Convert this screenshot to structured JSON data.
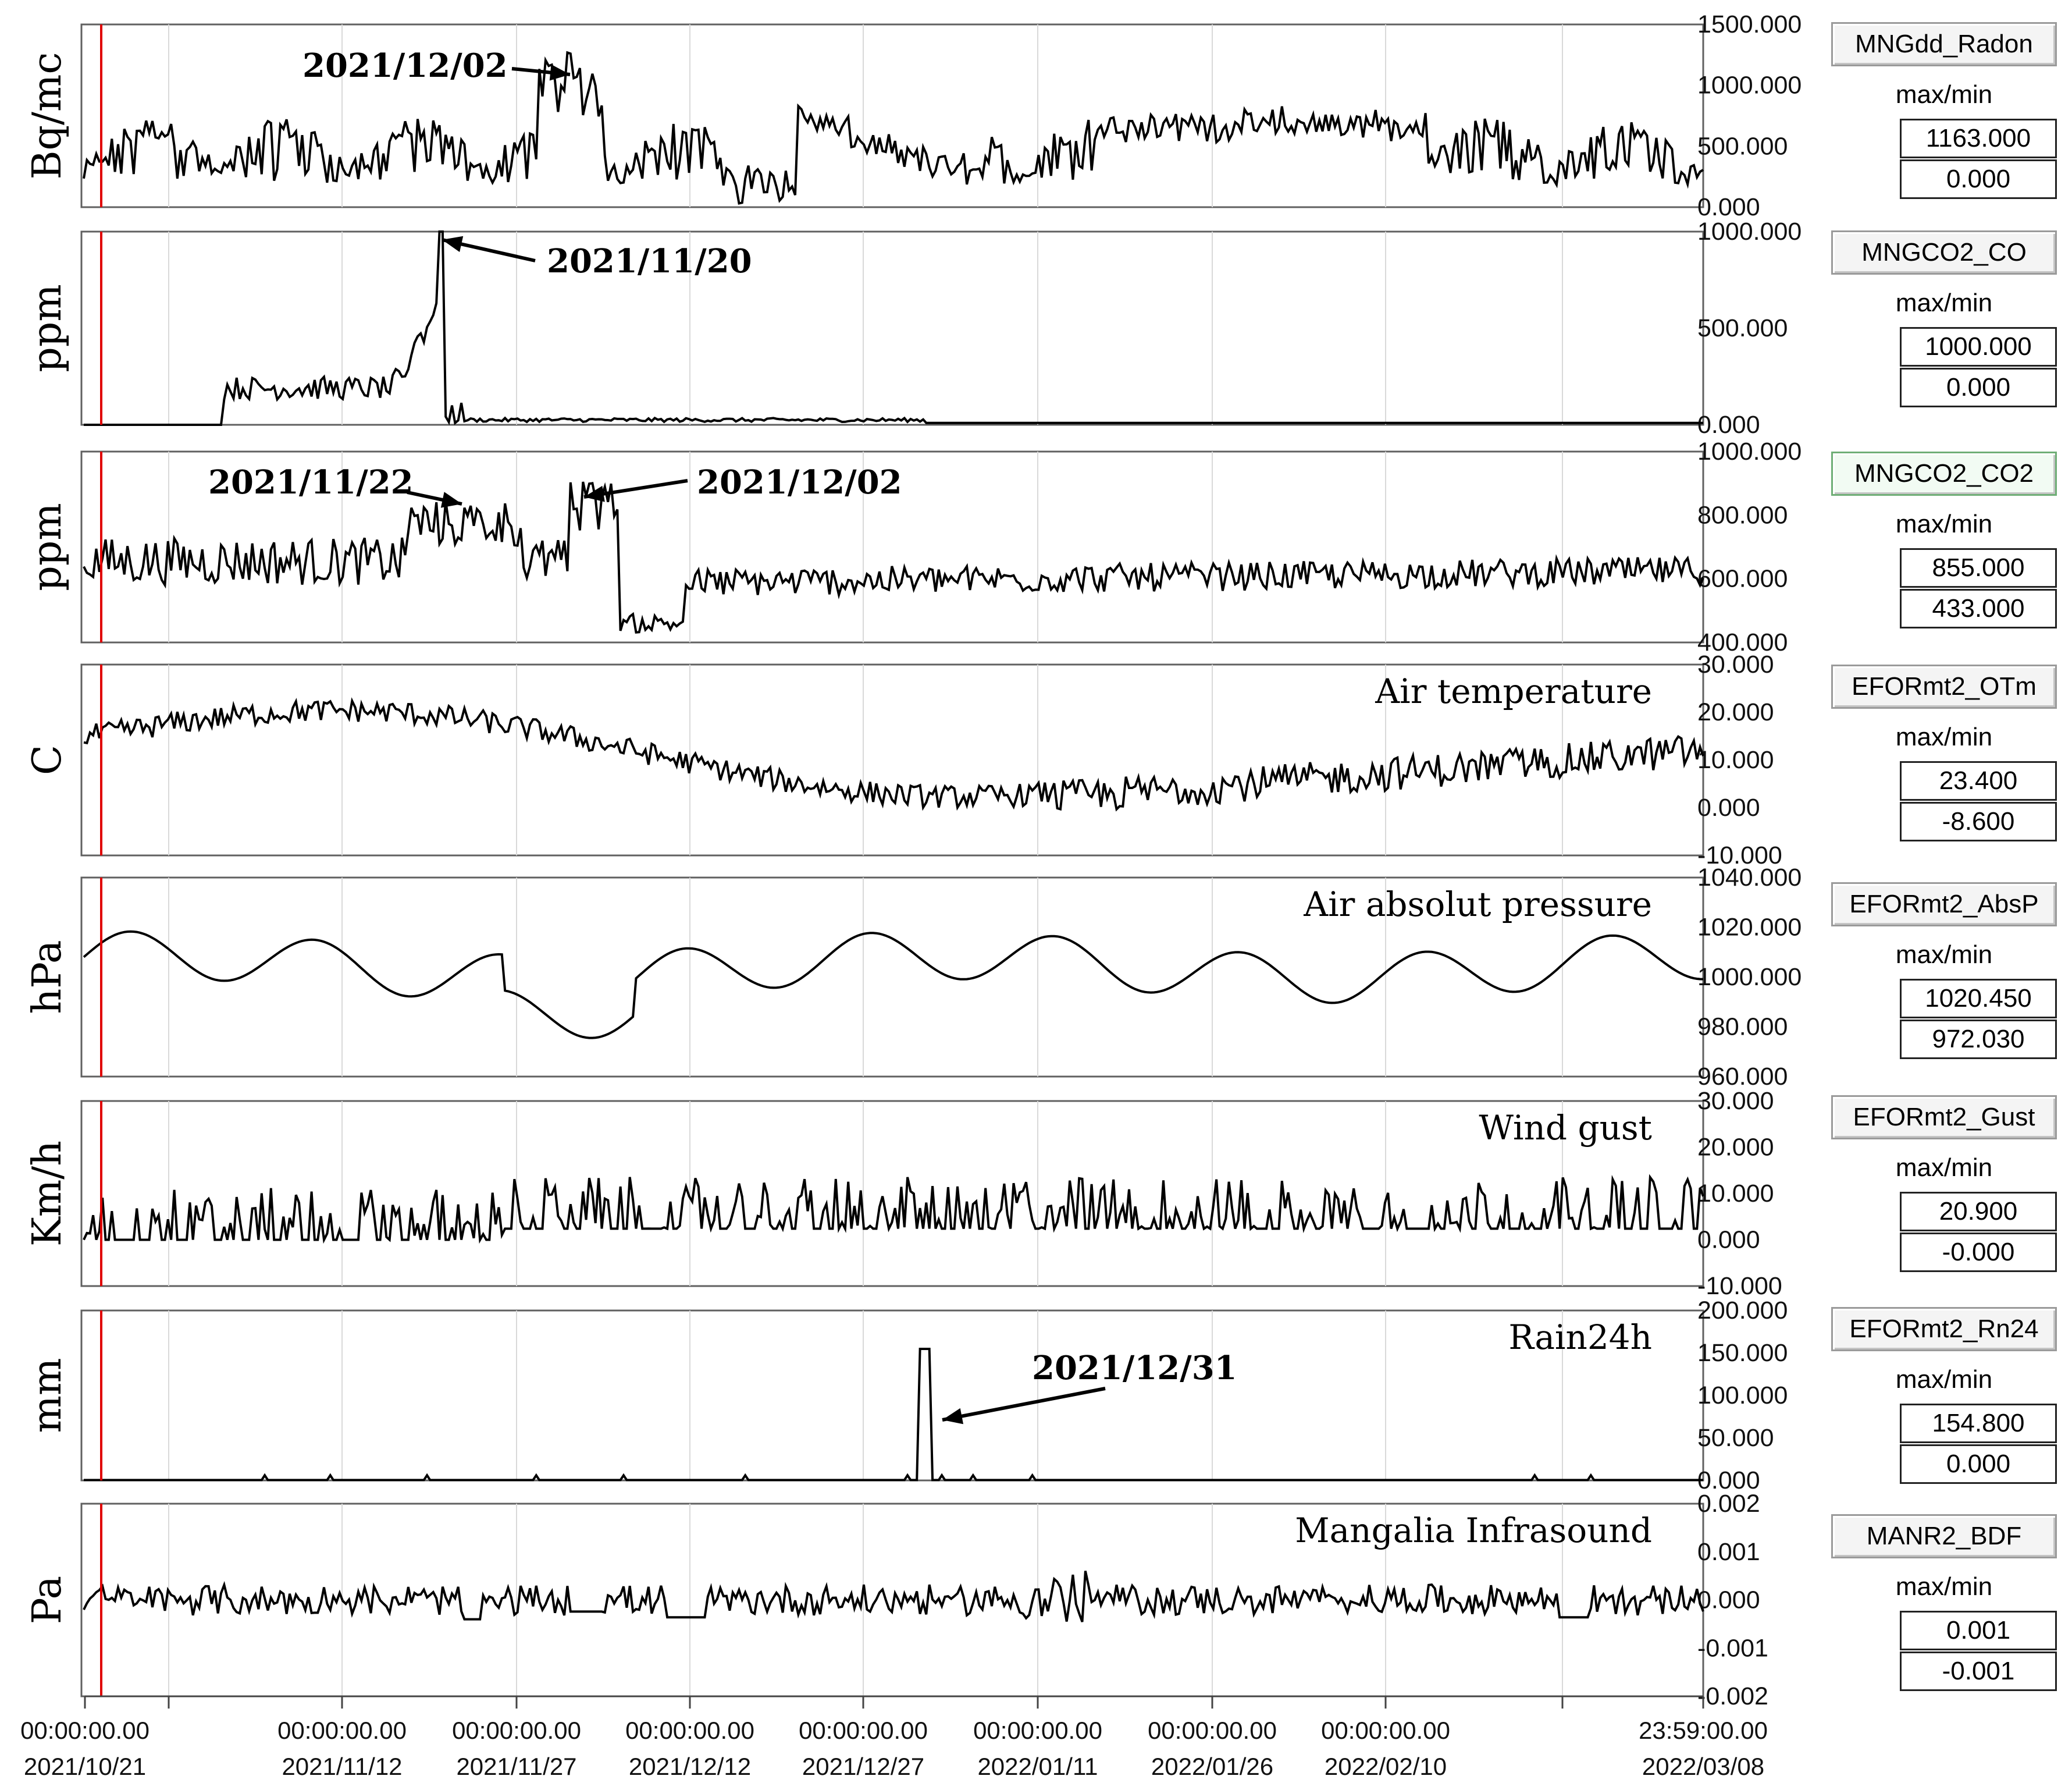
{
  "panels": [
    {
      "id": "radon",
      "ylabel": "Bq/mc",
      "title": "",
      "yticks": [
        "1500.000",
        "1000.000",
        "500.000",
        "0.000"
      ],
      "ylim": [
        0,
        1500
      ],
      "channel": "MNGdd_Radon",
      "max": "1163.000",
      "min": "0.000",
      "annotations": [
        {
          "text": "2021/12/02"
        }
      ]
    },
    {
      "id": "co",
      "ylabel": "ppm",
      "title": "",
      "yticks": [
        "1000.000",
        "500.000",
        "0.000"
      ],
      "ylim": [
        0,
        1000
      ],
      "channel": "MNGCO2_CO",
      "max": "1000.000",
      "min": "0.000",
      "annotations": [
        {
          "text": "2021/11/20"
        }
      ]
    },
    {
      "id": "co2",
      "ylabel": "ppm",
      "title": "",
      "yticks": [
        "1000.000",
        "800.000",
        "600.000",
        "400.000"
      ],
      "ylim": [
        400,
        1000
      ],
      "channel": "MNGCO2_CO2",
      "max": "855.000",
      "min": "433.000",
      "active": true,
      "annotations": [
        {
          "text": "2021/11/22"
        },
        {
          "text": "2021/12/02"
        }
      ]
    },
    {
      "id": "temp",
      "ylabel": "C",
      "title": "Air temperature",
      "yticks": [
        "30.000",
        "20.000",
        "10.000",
        "0.000",
        "-10.000"
      ],
      "ylim": [
        -10,
        30
      ],
      "channel": "EFORmt2_OTm",
      "max": "23.400",
      "min": "-8.600",
      "annotations": []
    },
    {
      "id": "pressure",
      "ylabel": "hPa",
      "title": "Air absolut pressure",
      "yticks": [
        "1040.000",
        "1020.000",
        "1000.000",
        "980.000",
        "960.000"
      ],
      "ylim": [
        960,
        1040
      ],
      "channel": "EFORmt2_AbsP",
      "max": "1020.450",
      "min": "972.030",
      "annotations": []
    },
    {
      "id": "gust",
      "ylabel": "Km/h",
      "title": "Wind gust",
      "yticks": [
        "30.000",
        "20.000",
        "10.000",
        "0.000",
        "-10.000"
      ],
      "ylim": [
        -10,
        30
      ],
      "channel": "EFORmt2_Gust",
      "max": "20.900",
      "min": "-0.000",
      "annotations": []
    },
    {
      "id": "rain",
      "ylabel": "mm",
      "title": "Rain24h",
      "yticks": [
        "200.000",
        "150.000",
        "100.000",
        "50.000",
        "0.000"
      ],
      "ylim": [
        0,
        200
      ],
      "channel": "EFORmt2_Rn24",
      "max": "154.800",
      "min": "0.000",
      "annotations": [
        {
          "text": "2021/12/31"
        }
      ]
    },
    {
      "id": "infra",
      "ylabel": "Pa",
      "title": "Mangalia Infrasound",
      "yticks": [
        "0.002",
        "0.001",
        "0.000",
        "-0.001",
        "-0.002"
      ],
      "ylim": [
        -0.002,
        0.002
      ],
      "channel": "MANR2_BDF",
      "max": "0.001",
      "min": "-0.001",
      "annotations": []
    }
  ],
  "side_panel": {
    "maxmin_label": "max/min"
  },
  "xaxis": {
    "ticks": [
      {
        "time": "00:00:00.00",
        "date": "2021/10/21"
      },
      {
        "time": "00:00:00.00",
        "date": "2021/11/12"
      },
      {
        "time": "00:00:00.00",
        "date": "2021/11/27"
      },
      {
        "time": "00:00:00.00",
        "date": "2021/12/12"
      },
      {
        "time": "00:00:00.00",
        "date": "2021/12/27"
      },
      {
        "time": "00:00:00.00",
        "date": "2022/01/11"
      },
      {
        "time": "00:00:00.00",
        "date": "2022/01/26"
      },
      {
        "time": "00:00:00.00",
        "date": "2022/02/10"
      },
      {
        "time": "23:59:00.00",
        "date": "2022/03/08"
      }
    ]
  },
  "colors": {
    "trace": "#000000",
    "cursor": "#e00000",
    "frame": "#606060",
    "active_channel": "#6fae76"
  }
}
